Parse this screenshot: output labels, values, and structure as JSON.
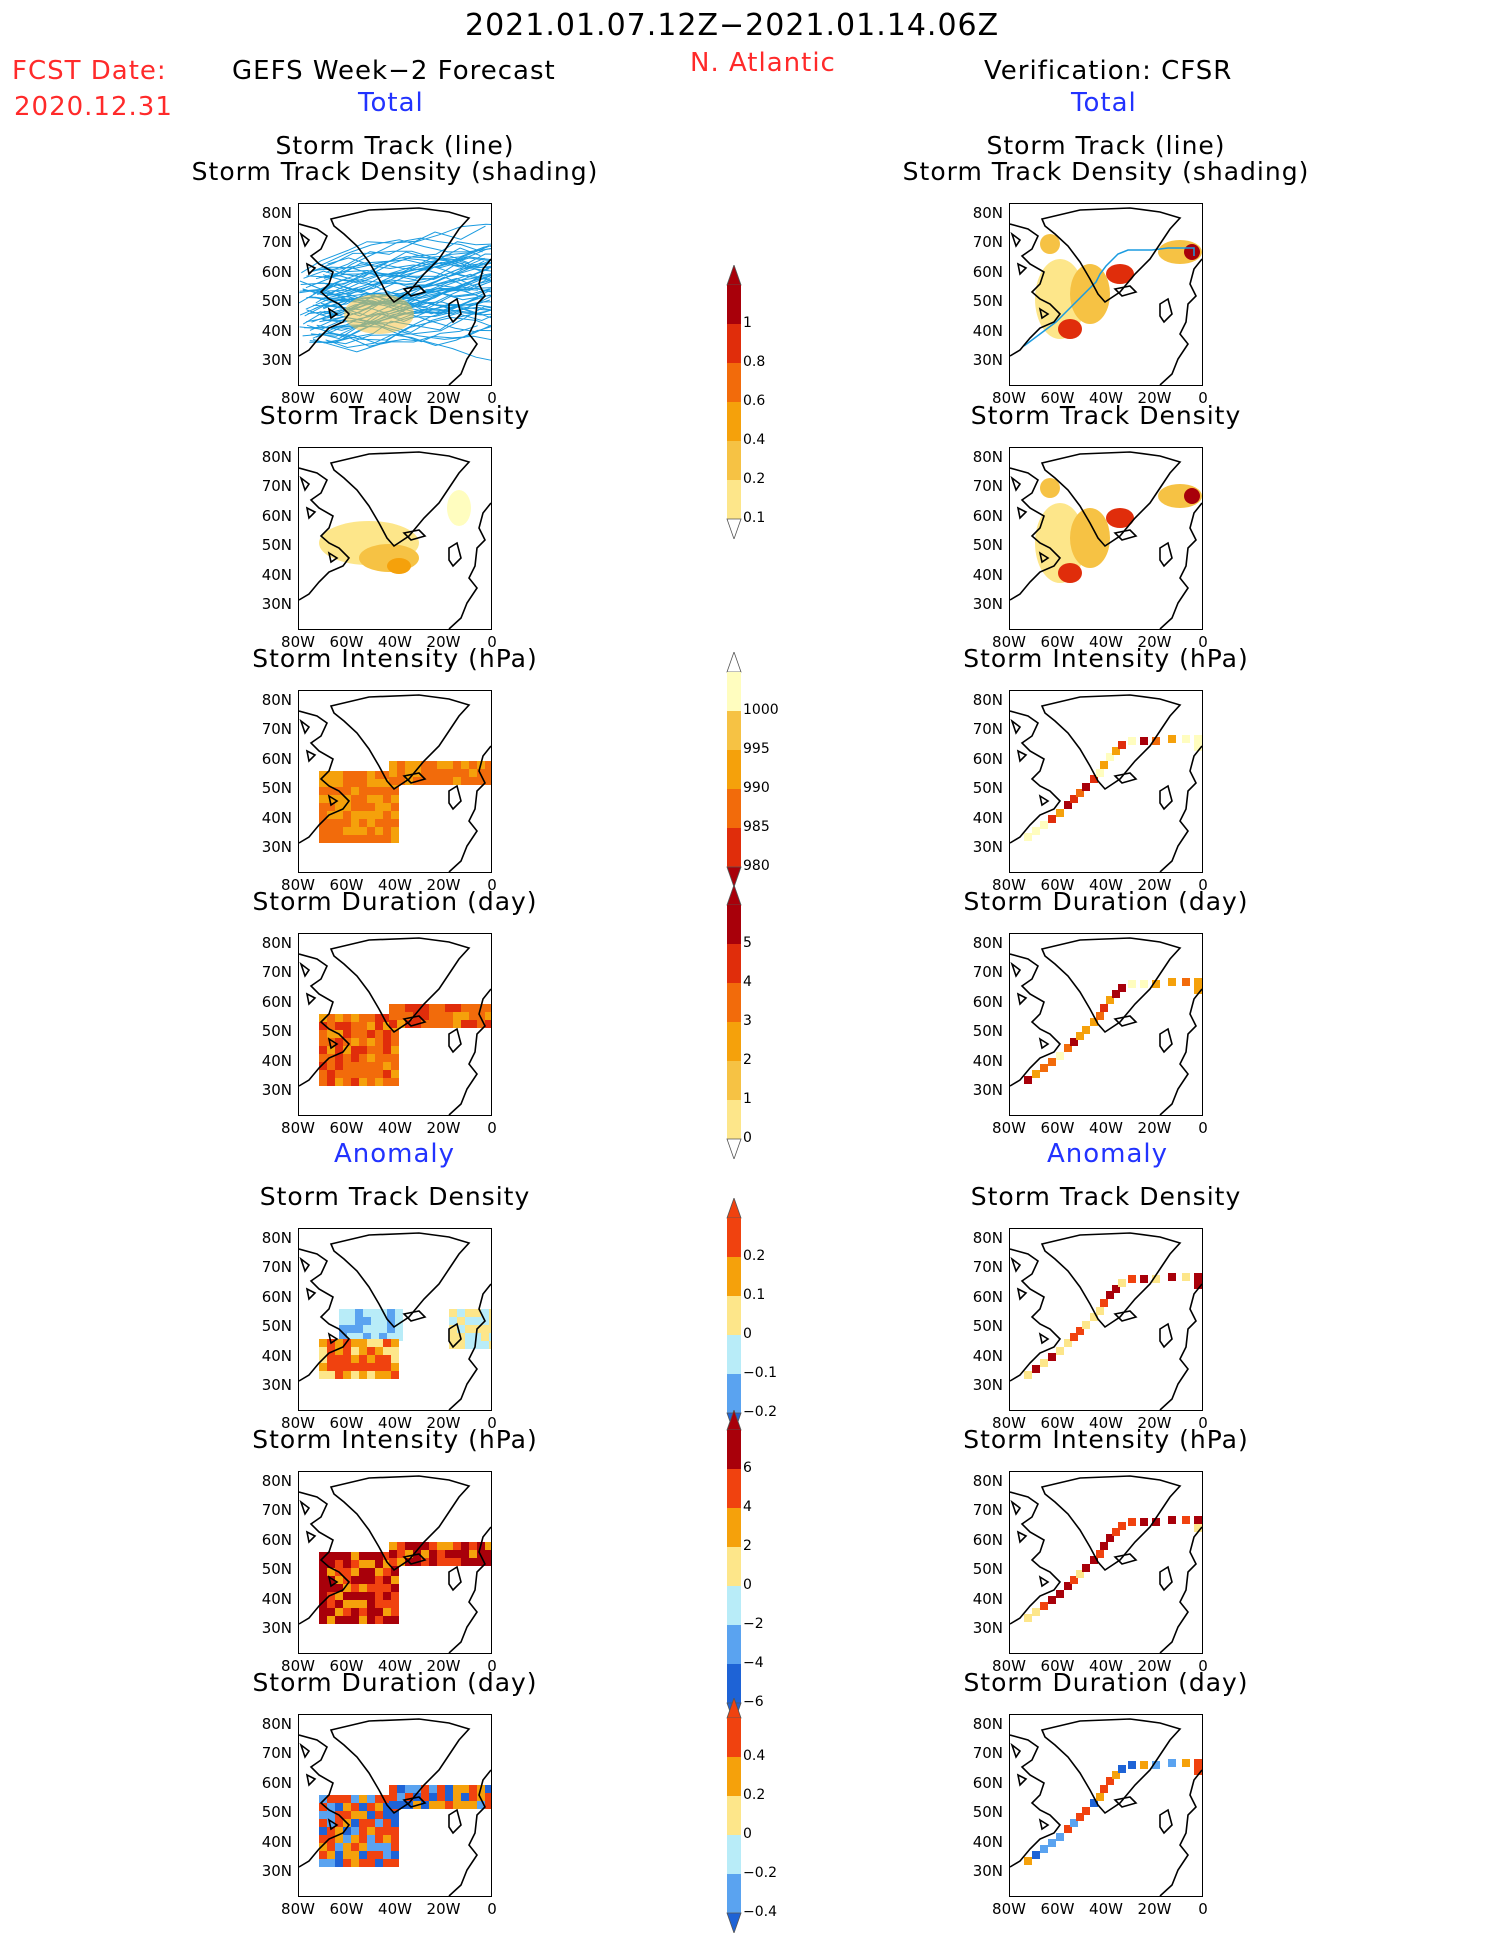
{
  "header": {
    "period": "2021.01.07.12Z−2021.01.14.06Z",
    "region": "N. Atlantic",
    "fcst_label": "FCST Date:",
    "fcst_date": "2020.12.31",
    "left_title": "GEFS Week−2 Forecast",
    "right_title": "Verification: CFSR",
    "left_total": "Total",
    "right_total": "Total",
    "left_anomaly": "Anomaly",
    "right_anomaly": "Anomaly"
  },
  "panels": {
    "track_line": "Storm Track (line)",
    "track_shading": "Storm Track Density (shading)",
    "density": "Storm Track Density",
    "intensity": "Storm Intensity (hPa)",
    "duration": "Storm Duration (day)"
  },
  "axes": {
    "lat": [
      "80N",
      "70N",
      "60N",
      "50N",
      "40N",
      "30N"
    ],
    "lon": [
      "80W",
      "60W",
      "40W",
      "20W",
      "0"
    ]
  },
  "colorbars": {
    "density_total": [
      "1",
      "0.8",
      "0.6",
      "0.4",
      "0.2",
      "0.1"
    ],
    "intensity_total": [
      "1000",
      "995",
      "990",
      "985",
      "980"
    ],
    "duration_total": [
      "5",
      "4",
      "3",
      "2",
      "1",
      "0"
    ],
    "density_anom": [
      "0.2",
      "0.1",
      "0",
      "−0.1",
      "−0.2"
    ],
    "intensity_anom": [
      "6",
      "4",
      "2",
      "0",
      "−2",
      "−4",
      "−6"
    ],
    "duration_anom": [
      "0.4",
      "0.2",
      "0",
      "−0.2",
      "−0.4"
    ]
  },
  "colors": {
    "warm": [
      "#fffdbf",
      "#fde68a",
      "#f6c244",
      "#f5a10b",
      "#f26b0b",
      "#e02d0b",
      "#a8000a"
    ],
    "anom": [
      "#1e63d6",
      "#5aa3f0",
      "#b8ecf8",
      "#fde68a",
      "#f5a10b",
      "#f0420f",
      "#a8000a"
    ],
    "track": "#1a9be0"
  }
}
